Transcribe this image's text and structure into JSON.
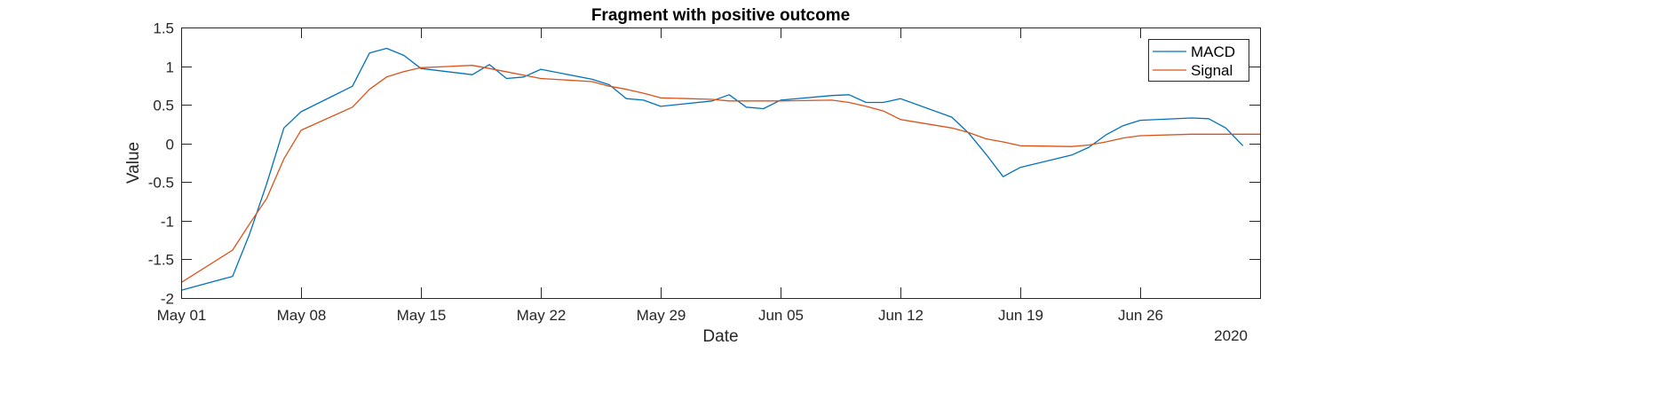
{
  "chart_data": {
    "type": "line",
    "title": "Fragment with positive outcome",
    "xlabel": "Date",
    "ylabel": "Value",
    "year_label": "2020",
    "xlim": [
      "2020-05-01",
      "2020-07-03"
    ],
    "ylim": [
      -2,
      1.5
    ],
    "yticks": [
      -2,
      -1.5,
      -1,
      -0.5,
      0,
      0.5,
      1,
      1.5
    ],
    "ytick_labels": [
      "-2",
      "-1.5",
      "-1",
      "-0.5",
      "0",
      "0.5",
      "1",
      "1.5"
    ],
    "xticks": [
      "2020-05-01",
      "2020-05-08",
      "2020-05-15",
      "2020-05-22",
      "2020-05-29",
      "2020-06-05",
      "2020-06-12",
      "2020-06-19",
      "2020-06-26"
    ],
    "xtick_labels": [
      "May 01",
      "May 08",
      "May 15",
      "May 22",
      "May 29",
      "Jun 05",
      "Jun 12",
      "Jun 19",
      "Jun 26"
    ],
    "grid": false,
    "legend_position": "top-right",
    "series": [
      {
        "name": "MACD",
        "color": "#0072BD",
        "points": [
          [
            "2020-05-01",
            -1.9
          ],
          [
            "2020-05-04",
            -1.72
          ],
          [
            "2020-05-05",
            -1.17
          ],
          [
            "2020-05-06",
            -0.52
          ],
          [
            "2020-05-07",
            0.2
          ],
          [
            "2020-05-08",
            0.41
          ],
          [
            "2020-05-11",
            0.74
          ],
          [
            "2020-05-12",
            1.17
          ],
          [
            "2020-05-13",
            1.23
          ],
          [
            "2020-05-14",
            1.14
          ],
          [
            "2020-05-15",
            0.97
          ],
          [
            "2020-05-18",
            0.89
          ],
          [
            "2020-05-19",
            1.02
          ],
          [
            "2020-05-20",
            0.84
          ],
          [
            "2020-05-21",
            0.86
          ],
          [
            "2020-05-22",
            0.96
          ],
          [
            "2020-05-25",
            0.83
          ],
          [
            "2020-05-26",
            0.76
          ],
          [
            "2020-05-27",
            0.58
          ],
          [
            "2020-05-28",
            0.56
          ],
          [
            "2020-05-29",
            0.48
          ],
          [
            "2020-06-01",
            0.55
          ],
          [
            "2020-06-02",
            0.63
          ],
          [
            "2020-06-03",
            0.47
          ],
          [
            "2020-06-04",
            0.45
          ],
          [
            "2020-06-05",
            0.56
          ],
          [
            "2020-06-08",
            0.62
          ],
          [
            "2020-06-09",
            0.63
          ],
          [
            "2020-06-10",
            0.53
          ],
          [
            "2020-06-11",
            0.53
          ],
          [
            "2020-06-12",
            0.58
          ],
          [
            "2020-06-15",
            0.34
          ],
          [
            "2020-06-16",
            0.13
          ],
          [
            "2020-06-17",
            -0.14
          ],
          [
            "2020-06-18",
            -0.43
          ],
          [
            "2020-06-19",
            -0.31
          ],
          [
            "2020-06-22",
            -0.15
          ],
          [
            "2020-06-23",
            -0.05
          ],
          [
            "2020-06-24",
            0.11
          ],
          [
            "2020-06-25",
            0.23
          ],
          [
            "2020-06-26",
            0.3
          ],
          [
            "2020-06-29",
            0.33
          ],
          [
            "2020-06-30",
            0.32
          ],
          [
            "2020-07-01",
            0.2
          ],
          [
            "2020-07-02",
            -0.03
          ]
        ]
      },
      {
        "name": "Signal",
        "color": "#D95319",
        "points": [
          [
            "2020-05-01",
            -1.8
          ],
          [
            "2020-05-04",
            -1.38
          ],
          [
            "2020-05-05",
            -1.04
          ],
          [
            "2020-05-06",
            -0.71
          ],
          [
            "2020-05-07",
            -0.2
          ],
          [
            "2020-05-08",
            0.17
          ],
          [
            "2020-05-11",
            0.47
          ],
          [
            "2020-05-12",
            0.7
          ],
          [
            "2020-05-13",
            0.86
          ],
          [
            "2020-05-14",
            0.93
          ],
          [
            "2020-05-15",
            0.98
          ],
          [
            "2020-05-18",
            1.01
          ],
          [
            "2020-05-19",
            0.97
          ],
          [
            "2020-05-22",
            0.84
          ],
          [
            "2020-05-25",
            0.8
          ],
          [
            "2020-05-26",
            0.74
          ],
          [
            "2020-05-27",
            0.7
          ],
          [
            "2020-05-28",
            0.65
          ],
          [
            "2020-05-29",
            0.59
          ],
          [
            "2020-06-01",
            0.57
          ],
          [
            "2020-06-02",
            0.55
          ],
          [
            "2020-06-05",
            0.55
          ],
          [
            "2020-06-08",
            0.56
          ],
          [
            "2020-06-09",
            0.53
          ],
          [
            "2020-06-10",
            0.48
          ],
          [
            "2020-06-11",
            0.42
          ],
          [
            "2020-06-12",
            0.31
          ],
          [
            "2020-06-15",
            0.2
          ],
          [
            "2020-06-16",
            0.14
          ],
          [
            "2020-06-17",
            0.06
          ],
          [
            "2020-06-18",
            0.02
          ],
          [
            "2020-06-19",
            -0.03
          ],
          [
            "2020-06-22",
            -0.04
          ],
          [
            "2020-06-23",
            -0.02
          ],
          [
            "2020-06-24",
            0.02
          ],
          [
            "2020-06-25",
            0.07
          ],
          [
            "2020-06-26",
            0.1
          ],
          [
            "2020-06-29",
            0.12
          ],
          [
            "2020-07-01",
            0.12
          ],
          [
            "2020-07-03",
            0.12
          ]
        ]
      }
    ]
  }
}
